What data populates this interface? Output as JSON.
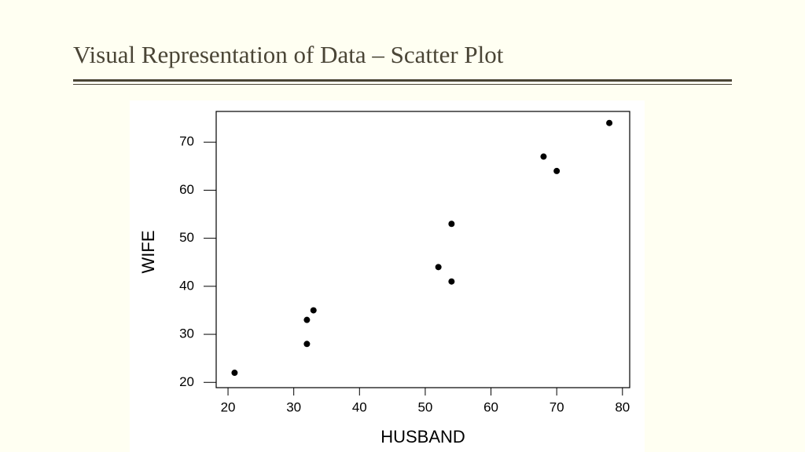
{
  "chart_data": {
    "type": "scatter",
    "title": "Visual Representation of Data – Scatter Plot",
    "x_label": "HUSBAND",
    "y_label": "WIFE",
    "x": [
      21,
      32,
      32,
      33,
      52,
      54,
      54,
      68,
      70,
      78
    ],
    "values": [
      22,
      33,
      28,
      35,
      44,
      53,
      41,
      67,
      64,
      74
    ],
    "color": "#000000",
    "xlim": [
      18.2,
      81.1
    ],
    "xticks": [
      20,
      30,
      40,
      50,
      60,
      70,
      80
    ],
    "ylim": [
      18.9,
      76.4
    ],
    "yticks": [
      20,
      30,
      40,
      50,
      60,
      70
    ]
  }
}
